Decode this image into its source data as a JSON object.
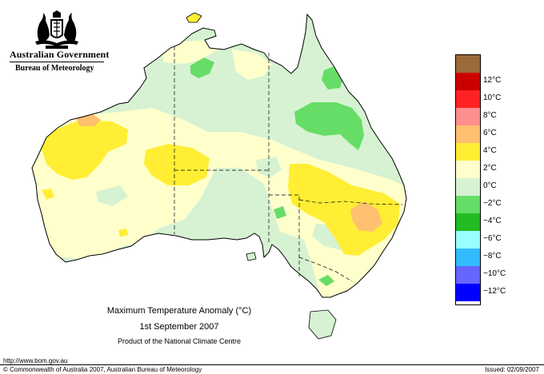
{
  "header": {
    "government": "Australian Government",
    "agency": "Bureau of Meteorology"
  },
  "map": {
    "title_line1": "Maximum Temperature Anomaly (°C)",
    "title_line2": "1st September 2007",
    "title_line3": "Product of the National Climate Centre"
  },
  "legend": {
    "items": [
      {
        "label": "",
        "color": "#9b6a3a"
      },
      {
        "label": "12°C",
        "color": "#cc0000"
      },
      {
        "label": "10°C",
        "color": "#ff2222"
      },
      {
        "label": "8°C",
        "color": "#ff8f8f"
      },
      {
        "label": "6°C",
        "color": "#ffc070"
      },
      {
        "label": "4°C",
        "color": "#ffee33"
      },
      {
        "label": "2°C",
        "color": "#ffffcc"
      },
      {
        "label": "0°C",
        "color": "#d6f2d2"
      },
      {
        "label": "−2°C",
        "color": "#66dd66"
      },
      {
        "label": "−4°C",
        "color": "#22bb22"
      },
      {
        "label": "−6°C",
        "color": "#99ffff"
      },
      {
        "label": "−8°C",
        "color": "#33bbff"
      },
      {
        "label": "−10°C",
        "color": "#6666ff"
      },
      {
        "label": "−12°C",
        "color": "#0000ff"
      }
    ]
  },
  "footer": {
    "url": "http://www.bom.gov.au",
    "copyright": "© Commonwealth of Australia 2007, Australian Bureau of Meteorology",
    "issued": "Issued: 02/09/2007"
  }
}
